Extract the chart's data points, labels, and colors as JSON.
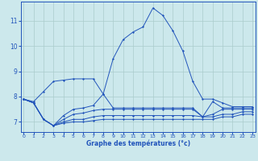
{
  "background_color": "#cce8ec",
  "grid_color": "#aacccc",
  "line_color": "#2255bb",
  "xlabel": "Graphe des températures (°c)",
  "x_ticks": [
    0,
    1,
    2,
    3,
    4,
    5,
    6,
    7,
    8,
    9,
    10,
    11,
    12,
    13,
    14,
    15,
    16,
    17,
    18,
    19,
    20,
    21,
    22,
    23
  ],
  "y_ticks": [
    7,
    8,
    9,
    10,
    11
  ],
  "ylim": [
    6.6,
    11.75
  ],
  "xlim": [
    -0.3,
    23.3
  ],
  "series": [
    [
      7.9,
      7.8,
      8.2,
      8.6,
      8.65,
      8.7,
      8.7,
      8.7,
      8.1,
      9.5,
      10.25,
      10.55,
      10.75,
      11.5,
      11.2,
      10.6,
      9.8,
      8.6,
      7.9,
      7.9,
      7.75,
      7.6,
      7.6,
      7.6
    ],
    [
      7.9,
      7.75,
      7.1,
      6.85,
      7.25,
      7.5,
      7.55,
      7.65,
      8.1,
      7.55,
      7.55,
      7.55,
      7.55,
      7.55,
      7.55,
      7.55,
      7.55,
      7.55,
      7.2,
      7.8,
      7.55,
      7.55,
      7.55,
      7.55
    ],
    [
      7.9,
      7.75,
      7.1,
      6.85,
      7.1,
      7.3,
      7.35,
      7.45,
      7.5,
      7.5,
      7.5,
      7.5,
      7.5,
      7.5,
      7.5,
      7.5,
      7.5,
      7.5,
      7.2,
      7.3,
      7.5,
      7.5,
      7.5,
      7.5
    ],
    [
      7.9,
      7.75,
      7.1,
      6.85,
      7.0,
      7.1,
      7.1,
      7.2,
      7.25,
      7.25,
      7.25,
      7.25,
      7.25,
      7.25,
      7.25,
      7.25,
      7.25,
      7.25,
      7.2,
      7.2,
      7.3,
      7.3,
      7.4,
      7.4
    ],
    [
      7.9,
      7.75,
      7.1,
      6.85,
      6.95,
      7.0,
      7.0,
      7.05,
      7.1,
      7.1,
      7.1,
      7.1,
      7.1,
      7.1,
      7.1,
      7.1,
      7.1,
      7.1,
      7.1,
      7.1,
      7.2,
      7.2,
      7.3,
      7.3
    ]
  ]
}
